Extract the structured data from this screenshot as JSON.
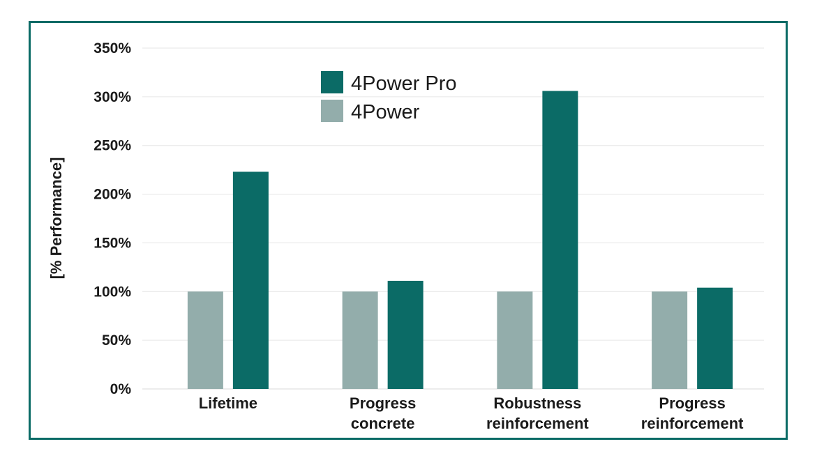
{
  "chart_data": {
    "type": "bar",
    "ylabel": "[% Performance]",
    "categories": [
      [
        "Lifetime"
      ],
      [
        "Progress",
        "concrete"
      ],
      [
        "Robustness",
        "reinforcement"
      ],
      [
        "Progress",
        "reinforcement"
      ]
    ],
    "ylim": [
      0,
      350
    ],
    "yticks": [
      0,
      50,
      100,
      150,
      200,
      250,
      300,
      350
    ],
    "ytick_labels": [
      "0%",
      "50%",
      "100%",
      "150%",
      "200%",
      "250%",
      "300%",
      "350%"
    ],
    "grid": true,
    "legend_position": "top-left",
    "series": [
      {
        "name": "4Power",
        "color": "#93adab",
        "values": [
          100,
          100,
          100,
          100
        ]
      },
      {
        "name": "4Power Pro",
        "color": "#0b6b66",
        "values": [
          223,
          111,
          306,
          104
        ]
      }
    ],
    "legend_order": [
      1,
      0
    ]
  }
}
